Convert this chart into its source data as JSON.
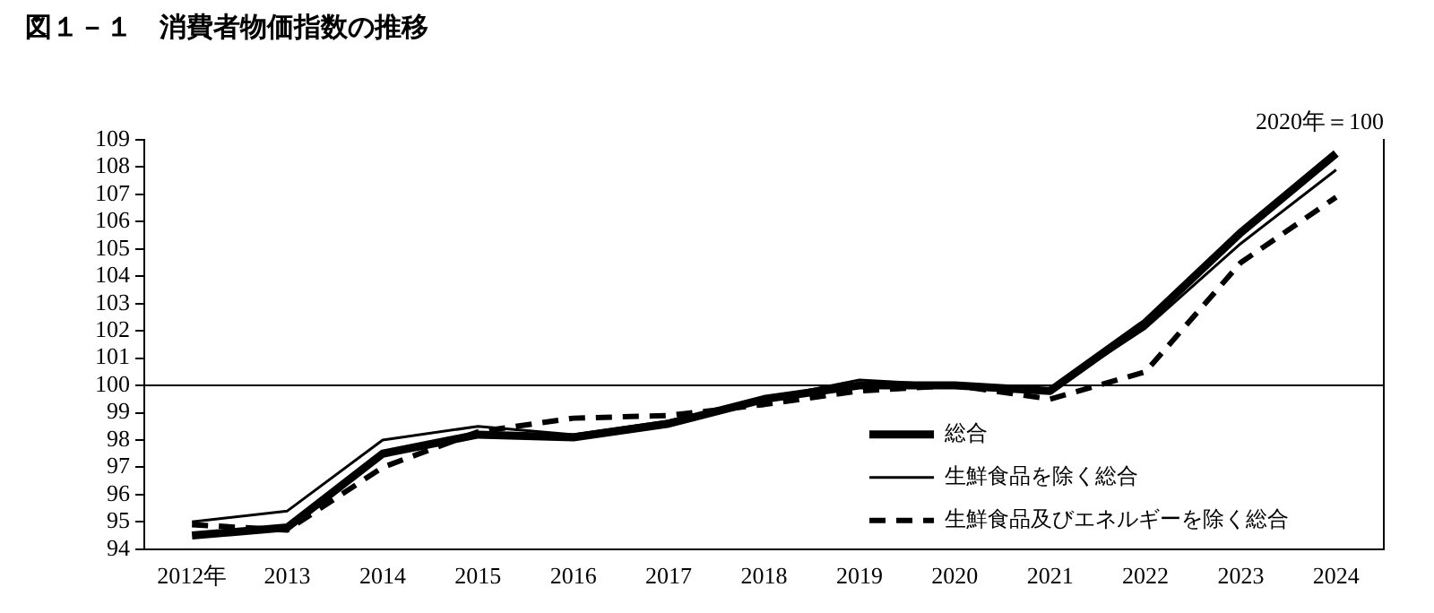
{
  "chart_data": {
    "type": "line",
    "title": "図１－１　消費者物価指数の推移",
    "annotations": [
      "2020年＝100"
    ],
    "categories": [
      "2012年",
      "2013",
      "2014",
      "2015",
      "2016",
      "2017",
      "2018",
      "2019",
      "2020",
      "2021",
      "2022",
      "2023",
      "2024"
    ],
    "series": [
      {
        "name": "総合",
        "color": "#000000",
        "line_style": "solid",
        "values": [
          94.5,
          94.8,
          97.5,
          98.2,
          98.1,
          98.6,
          99.5,
          100.0,
          100.0,
          99.8,
          102.3,
          105.6,
          108.5
        ]
      },
      {
        "name": "生鮮食品を除く総合",
        "color": "#000000",
        "line_style": "solid",
        "values": [
          95.0,
          95.4,
          98.0,
          98.5,
          98.2,
          98.7,
          99.5,
          100.2,
          100.0,
          99.8,
          102.1,
          105.2,
          107.9
        ]
      },
      {
        "name": "生鮮食品及びエネルギーを除く総合",
        "color": "#000000",
        "line_style": "dashed",
        "values": [
          94.9,
          94.7,
          97.0,
          98.3,
          98.8,
          98.9,
          99.3,
          99.8,
          100.0,
          99.5,
          100.5,
          104.5,
          106.9
        ]
      }
    ],
    "ylim": [
      94,
      109
    ],
    "yticks": [
      94,
      95,
      96,
      97,
      98,
      99,
      100,
      101,
      102,
      103,
      104,
      105,
      106,
      107,
      108,
      109
    ],
    "ref_lines": [
      {
        "axis": "y",
        "value": 100,
        "color": "#000000"
      }
    ],
    "grid": false,
    "legend": "bottom right",
    "marker": "none"
  }
}
